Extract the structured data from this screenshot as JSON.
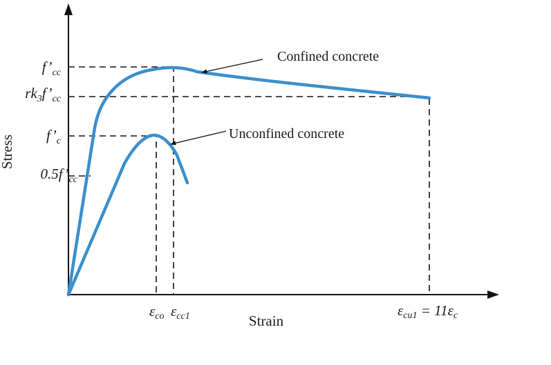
{
  "axes": {
    "y_label": "Stress",
    "x_label": "Strain"
  },
  "y_ticks": {
    "fcc": {
      "main": "f’",
      "sub": "cc"
    },
    "rk3fcc": {
      "a": "rk",
      "b": "3",
      "c": "f’",
      "d": "cc"
    },
    "fc": {
      "main": "f’",
      "sub": "c"
    },
    "half_fcc": {
      "main": "0.5f’",
      "sub": "cc"
    }
  },
  "x_ticks": {
    "eco": {
      "eps": "ε",
      "sub": "co"
    },
    "ecc1": {
      "eps": "ε",
      "sub": "cc1"
    },
    "ecu1": {
      "eps": "ε",
      "sub": "cu1",
      "eq": " = 11ε",
      "sub2": "c"
    }
  },
  "curves": {
    "confined_label": "Confined concrete",
    "unconfined_label": "Unconfined concrete",
    "color": "#3b8fcc"
  }
}
